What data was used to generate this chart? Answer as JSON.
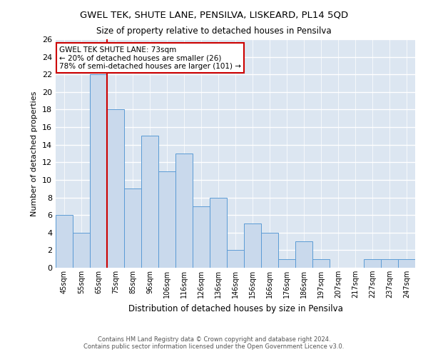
{
  "title": "GWEL TEK, SHUTE LANE, PENSILVA, LISKEARD, PL14 5QD",
  "subtitle": "Size of property relative to detached houses in Pensilva",
  "xlabel": "Distribution of detached houses by size in Pensilva",
  "ylabel": "Number of detached properties",
  "bar_color": "#c9d9ec",
  "bar_edge_color": "#5b9bd5",
  "background_color": "#dce6f1",
  "grid_color": "#ffffff",
  "categories": [
    "45sqm",
    "55sqm",
    "65sqm",
    "75sqm",
    "85sqm",
    "96sqm",
    "106sqm",
    "116sqm",
    "126sqm",
    "136sqm",
    "146sqm",
    "156sqm",
    "166sqm",
    "176sqm",
    "186sqm",
    "197sqm",
    "207sqm",
    "217sqm",
    "227sqm",
    "237sqm",
    "247sqm"
  ],
  "values": [
    6,
    4,
    22,
    18,
    9,
    15,
    11,
    13,
    7,
    8,
    2,
    5,
    4,
    1,
    3,
    1,
    0,
    0,
    1,
    1,
    1
  ],
  "vline_color": "#cc0000",
  "annotation_text": "GWEL TEK SHUTE LANE: 73sqm\n← 20% of detached houses are smaller (26)\n78% of semi-detached houses are larger (101) →",
  "annotation_box_color": "#ffffff",
  "annotation_box_edge_color": "#cc0000",
  "footer1": "Contains HM Land Registry data © Crown copyright and database right 2024.",
  "footer2": "Contains public sector information licensed under the Open Government Licence v3.0.",
  "ylim": [
    0,
    26
  ],
  "yticks": [
    0,
    2,
    4,
    6,
    8,
    10,
    12,
    14,
    16,
    18,
    20,
    22,
    24,
    26
  ]
}
